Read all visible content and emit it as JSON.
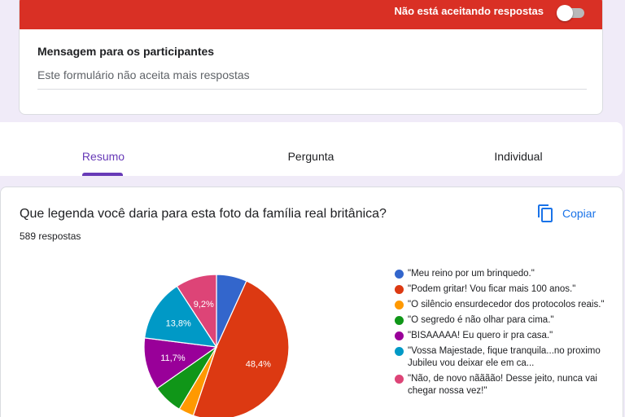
{
  "banner": {
    "status_text": "Não está aceitando respostas",
    "color": "#d93025",
    "toggle_on": false
  },
  "message": {
    "title": "Mensagem para os participantes",
    "value": "Este formulário não aceita mais respostas"
  },
  "tabs": [
    {
      "label": "Resumo",
      "active": true
    },
    {
      "label": "Pergunta",
      "active": false
    },
    {
      "label": "Individual",
      "active": false
    }
  ],
  "question": {
    "title": "Que legenda você daria para esta foto da família real britânica?",
    "response_count": "589 respostas",
    "copy_label": "Copiar",
    "copy_icon": "copy-icon"
  },
  "chart_data": {
    "type": "pie",
    "slices": [
      {
        "label": "\"Meu reino por um brinquedo.\"",
        "value": 6.8,
        "color": "#3366cc",
        "data_label": ""
      },
      {
        "label": "\"Podem gritar! Vou ficar mais 100 anos.\"",
        "value": 48.4,
        "color": "#dc3912",
        "data_label": "48,4%"
      },
      {
        "label": "\"O silêncio ensurdecedor dos protocolos reais.\"",
        "value": 3.4,
        "color": "#ff9900",
        "data_label": ""
      },
      {
        "label": "\"O segredo é não olhar para cima.\"",
        "value": 6.7,
        "color": "#109618",
        "data_label": ""
      },
      {
        "label": "\"BISAAAAA! Eu quero ir pra casa.\"",
        "value": 11.7,
        "color": "#990099",
        "data_label": "11,7%"
      },
      {
        "label": "\"Vossa Majestade, fique tranquila...no proximo Jubileu vou deixar ele em ca...",
        "value": 13.8,
        "color": "#0099c6",
        "data_label": "13,8%"
      },
      {
        "label": "\"Não, de novo nãããão! Desse jeito, nunca vai chegar nossa vez!\"",
        "value": 9.2,
        "color": "#dd4477",
        "data_label": "9,2%"
      }
    ],
    "legend_position": "right"
  }
}
